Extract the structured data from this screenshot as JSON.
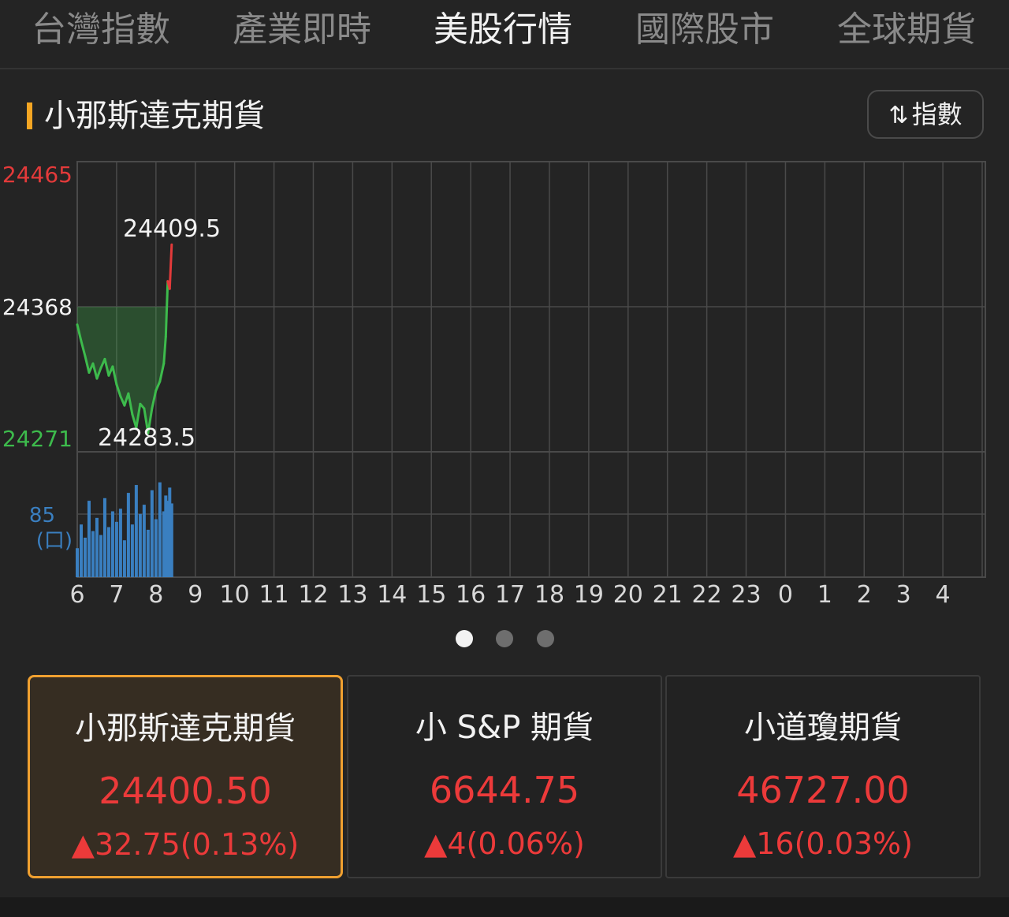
{
  "tabs": [
    {
      "label": "台灣指數",
      "active": false
    },
    {
      "label": "產業即時",
      "active": false
    },
    {
      "label": "美股行情",
      "active": true
    },
    {
      "label": "國際股市",
      "active": false
    },
    {
      "label": "全球期貨",
      "active": false
    }
  ],
  "section": {
    "title": "小那斯達克期貨",
    "toggle_icon": "⇅",
    "toggle_label": "指數"
  },
  "chart_data": {
    "type": "line",
    "y_labels": {
      "high": "24465",
      "ref": "24368",
      "low": "24271"
    },
    "ylim": [
      24271,
      24465
    ],
    "reference": 24368,
    "high_annotation": "24409.5",
    "low_annotation": "24283.5",
    "volume_label": "85",
    "volume_unit": "(口)",
    "volume_max": 85,
    "x_ticks": [
      "6",
      "7",
      "8",
      "9",
      "10",
      "11",
      "12",
      "13",
      "14",
      "15",
      "16",
      "17",
      "18",
      "19",
      "20",
      "21",
      "22",
      "23",
      "0",
      "1",
      "2",
      "3",
      "4"
    ],
    "x_values": [
      6.0,
      6.1,
      6.2,
      6.3,
      6.4,
      6.5,
      6.6,
      6.7,
      6.8,
      6.9,
      7.0,
      7.1,
      7.2,
      7.3,
      7.4,
      7.5,
      7.6,
      7.7,
      7.8,
      7.9,
      8.0,
      8.1,
      8.2,
      8.25,
      8.3,
      8.35,
      8.4
    ],
    "y_values": [
      24356,
      24345,
      24335,
      24324,
      24330,
      24320,
      24327,
      24333,
      24322,
      24328,
      24316,
      24308,
      24302,
      24310,
      24296,
      24287,
      24303,
      24300,
      24283.5,
      24300,
      24312,
      24318,
      24330,
      24348,
      24385,
      24380,
      24409.5
    ],
    "volume": [
      22,
      40,
      30,
      58,
      35,
      45,
      32,
      60,
      38,
      50,
      42,
      52,
      28,
      64,
      40,
      70,
      48,
      55,
      36,
      66,
      44,
      72,
      50,
      62,
      58,
      68,
      56
    ],
    "colors": {
      "up": "#e33a3a",
      "down": "#3dbb4c",
      "volume": "#3a7fc0",
      "grid": "#4a4a4a"
    }
  },
  "pager": {
    "count": 3,
    "active": 0
  },
  "cards": [
    {
      "name": "小那斯達克期貨",
      "price": "24400.50",
      "change": "▲32.75(0.13%)",
      "selected": true
    },
    {
      "name": "小 S&P 期貨",
      "price": "6644.75",
      "change": "▲4(0.06%)",
      "selected": false
    },
    {
      "name": "小道瓊期貨",
      "price": "46727.00",
      "change": "▲16(0.03%)",
      "selected": false
    }
  ]
}
